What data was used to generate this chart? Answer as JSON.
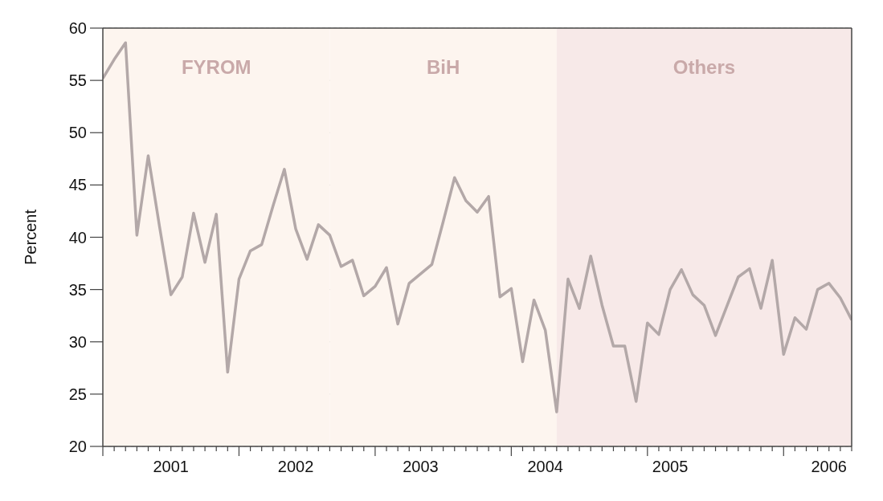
{
  "chart_data": {
    "type": "line",
    "ylabel": "Percent",
    "x": [
      "2001-01",
      "2001-02",
      "2001-03",
      "2001-04",
      "2001-05",
      "2001-06",
      "2001-07",
      "2001-08",
      "2001-09",
      "2001-10",
      "2001-11",
      "2001-12",
      "2002-01",
      "2002-02",
      "2002-03",
      "2002-04",
      "2002-05",
      "2002-06",
      "2002-07",
      "2002-08",
      "2002-09",
      "2002-10",
      "2002-11",
      "2002-12",
      "2003-01",
      "2003-02",
      "2003-03",
      "2003-04",
      "2003-05",
      "2003-06",
      "2003-07",
      "2003-08",
      "2003-09",
      "2003-10",
      "2003-11",
      "2003-12",
      "2004-01",
      "2004-02",
      "2004-03",
      "2004-04",
      "2004-05",
      "2004-06",
      "2004-07",
      "2004-08",
      "2004-09",
      "2004-10",
      "2004-11",
      "2004-12",
      "2005-01",
      "2005-02",
      "2005-03",
      "2005-04",
      "2005-05",
      "2005-06",
      "2005-07",
      "2005-08",
      "2005-09",
      "2005-10",
      "2005-11",
      "2005-12",
      "2006-01",
      "2006-02",
      "2006-03",
      "2006-04",
      "2006-05",
      "2006-06",
      "2006-07"
    ],
    "series": [
      {
        "color": "#b3a8a8",
        "values": [
          55.2,
          57,
          58.6,
          40.2,
          47.8,
          41,
          34.5,
          36.2,
          42.3,
          37.6,
          42.2,
          27.1,
          36,
          38.7,
          39.3,
          43,
          46.5,
          40.8,
          37.9,
          41.2,
          40.2,
          37.2,
          37.8,
          34.4,
          35.3,
          37.1,
          31.7,
          35.6,
          36.5,
          37.4,
          41.5,
          45.7,
          43.5,
          42.4,
          43.9,
          34.3,
          35.1,
          28.1,
          34,
          31.1,
          23.3,
          36,
          33.2,
          38.2,
          33.5,
          29.6,
          29.6,
          24.3,
          31.8,
          30.7,
          35,
          36.9,
          34.5,
          33.5,
          30.6,
          33.4,
          36.2,
          37,
          33.2,
          37.8,
          28.8,
          32.3,
          31.2,
          35,
          35.6,
          34.2,
          32.1
        ]
      }
    ],
    "xlim": [
      "2001-01",
      "2006-07"
    ],
    "xticks": [
      {
        "value": "2001-01",
        "label": null
      },
      {
        "value": "2001-02",
        "label": null
      },
      {
        "value": "2001-03",
        "label": null
      },
      {
        "value": "2001-04",
        "label": null
      },
      {
        "value": "2001-05",
        "label": null
      },
      {
        "value": "2001-06",
        "label": null
      },
      {
        "value": "2001-07",
        "label": "2001"
      },
      {
        "value": "2001-08",
        "label": null
      },
      {
        "value": "2001-09",
        "label": null
      },
      {
        "value": "2001-10",
        "label": null
      },
      {
        "value": "2001-11",
        "label": null
      },
      {
        "value": "2001-12",
        "label": null
      },
      {
        "value": "2002-01",
        "label": null
      },
      {
        "value": "2002-02",
        "label": null
      },
      {
        "value": "2002-03",
        "label": null
      },
      {
        "value": "2002-04",
        "label": null
      },
      {
        "value": "2002-05",
        "label": null
      },
      {
        "value": "2002-06",
        "label": "2002"
      },
      {
        "value": "2002-07",
        "label": null
      },
      {
        "value": "2002-08",
        "label": null
      },
      {
        "value": "2002-09",
        "label": null
      },
      {
        "value": "2002-10",
        "label": null
      },
      {
        "value": "2002-11",
        "label": null
      },
      {
        "value": "2002-12",
        "label": null
      },
      {
        "value": "2003-01",
        "label": null
      },
      {
        "value": "2003-02",
        "label": null
      },
      {
        "value": "2003-03",
        "label": null
      },
      {
        "value": "2003-04",
        "label": null
      },
      {
        "value": "2003-05",
        "label": "2003"
      },
      {
        "value": "2003-06",
        "label": null
      },
      {
        "value": "2003-07",
        "label": null
      },
      {
        "value": "2003-08",
        "label": null
      },
      {
        "value": "2003-09",
        "label": null
      },
      {
        "value": "2003-10",
        "label": null
      },
      {
        "value": "2003-11",
        "label": null
      },
      {
        "value": "2003-12",
        "label": null
      },
      {
        "value": "2004-01",
        "label": null
      },
      {
        "value": "2004-02",
        "label": null
      },
      {
        "value": "2004-03",
        "label": null
      },
      {
        "value": "2004-04",
        "label": "2004"
      },
      {
        "value": "2004-05",
        "label": null
      },
      {
        "value": "2004-06",
        "label": null
      },
      {
        "value": "2004-07",
        "label": null
      },
      {
        "value": "2004-08",
        "label": null
      },
      {
        "value": "2004-09",
        "label": null
      },
      {
        "value": "2004-10",
        "label": null
      },
      {
        "value": "2004-11",
        "label": null
      },
      {
        "value": "2004-12",
        "label": null
      },
      {
        "value": "2005-01",
        "label": null
      },
      {
        "value": "2005-02",
        "label": null
      },
      {
        "value": "2005-03",
        "label": "2005"
      },
      {
        "value": "2005-04",
        "label": null
      },
      {
        "value": "2005-05",
        "label": null
      },
      {
        "value": "2005-06",
        "label": null
      },
      {
        "value": "2005-07",
        "label": null
      },
      {
        "value": "2005-08",
        "label": null
      },
      {
        "value": "2005-09",
        "label": null
      },
      {
        "value": "2005-10",
        "label": null
      },
      {
        "value": "2005-11",
        "label": null
      },
      {
        "value": "2005-12",
        "label": null
      },
      {
        "value": "2006-01",
        "label": null
      },
      {
        "value": "2006-02",
        "label": null
      },
      {
        "value": "2006-03",
        "label": null
      },
      {
        "value": "2006-04",
        "label": null
      },
      {
        "value": "2006-05",
        "label": "2006"
      },
      {
        "value": "2006-06",
        "label": null
      },
      {
        "value": "2006-07",
        "label": null
      }
    ],
    "ylim": [
      20,
      60
    ],
    "yticks": [
      20,
      25,
      30,
      35,
      40,
      45,
      50,
      55,
      60
    ],
    "grid": "y",
    "legend": false,
    "marker": "none",
    "line_style": "solid",
    "bands": [
      {
        "axis": "x",
        "from": "2001-01",
        "to": "2002-09",
        "label": "FYROM",
        "color": "#fdf5ef"
      },
      {
        "axis": "x",
        "from": "2002-09",
        "to": "2004-05",
        "label": "BiH",
        "color": "#fdf5ef"
      },
      {
        "axis": "x",
        "from": "2004-05",
        "to": "2006-07",
        "label": "Others",
        "color": "#f7e9e8"
      }
    ]
  }
}
